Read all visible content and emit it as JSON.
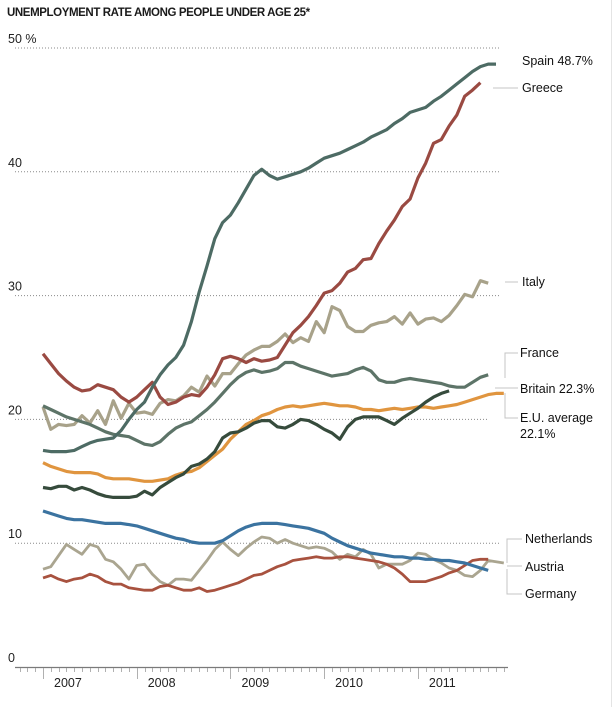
{
  "chart_data": {
    "type": "line",
    "title": "UNEMPLOYMENT RATE AMONG PEOPLE UNDER AGE 25*",
    "xlabel": "",
    "ylabel": "",
    "ylim": [
      0,
      50
    ],
    "y_ticks": [
      {
        "value": 0,
        "label": "0"
      },
      {
        "value": 10,
        "label": "10"
      },
      {
        "value": 20,
        "label": "20"
      },
      {
        "value": 30,
        "label": "30"
      },
      {
        "value": 40,
        "label": "40"
      },
      {
        "value": 50,
        "label": "50 %"
      }
    ],
    "x_ticks": [
      "2007",
      "2008",
      "2009",
      "2010",
      "2011"
    ],
    "x_start": "2007-01",
    "x_unit": "month",
    "grid": "horizontal dotted",
    "legend": "direct labels at right end of lines",
    "series": [
      {
        "name": "Spain",
        "label": "Spain 48.7%",
        "color": "#4d6b64",
        "width": 3.2,
        "values": [
          17.5,
          17.4,
          17.4,
          17.4,
          17.5,
          17.8,
          18.1,
          18.3,
          18.4,
          18.5,
          19.1,
          20.0,
          20.8,
          21.4,
          22.6,
          23.6,
          24.4,
          25.0,
          26.0,
          27.9,
          30.3,
          32.4,
          34.6,
          35.9,
          36.5,
          37.5,
          38.6,
          39.7,
          40.2,
          39.7,
          39.4,
          39.6,
          39.8,
          40.0,
          40.3,
          40.7,
          41.1,
          41.3,
          41.5,
          41.8,
          42.1,
          42.4,
          42.8,
          43.1,
          43.4,
          43.9,
          44.3,
          44.8,
          45.0,
          45.2,
          45.7,
          46.1,
          46.6,
          47.1,
          47.6,
          48.1,
          48.5,
          48.7,
          48.7
        ]
      },
      {
        "name": "Greece",
        "label": "Greece",
        "color": "#9a4a42",
        "width": 3.2,
        "values": [
          25.3,
          24.5,
          23.7,
          23.1,
          22.6,
          22.3,
          22.4,
          22.8,
          22.6,
          22.4,
          21.8,
          21.4,
          21.8,
          22.4,
          23.0,
          21.8,
          21.2,
          21.4,
          21.8,
          22.0,
          21.9,
          22.6,
          23.6,
          24.9,
          25.1,
          24.9,
          24.6,
          24.9,
          24.7,
          24.8,
          25.0,
          26.0,
          27.0,
          27.6,
          28.3,
          29.2,
          30.2,
          30.4,
          31.0,
          31.9,
          32.2,
          32.9,
          33.0,
          34.2,
          35.2,
          36.1,
          37.2,
          37.8,
          39.5,
          40.7,
          42.3,
          42.6,
          43.7,
          44.6,
          46.1,
          46.6,
          47.2
        ]
      },
      {
        "name": "Italy",
        "label": "Italy",
        "color": "#a8a28a",
        "width": 3.2,
        "values": [
          21.0,
          19.2,
          19.6,
          19.5,
          19.6,
          20.3,
          19.7,
          20.7,
          19.6,
          21.5,
          20.1,
          21.3,
          20.5,
          20.6,
          20.4,
          21.3,
          21.6,
          21.5,
          21.9,
          22.6,
          22.2,
          23.5,
          22.7,
          23.7,
          23.7,
          24.5,
          25.2,
          25.6,
          25.9,
          25.9,
          26.3,
          26.9,
          26.2,
          26.6,
          26.3,
          27.9,
          27.0,
          29.1,
          28.8,
          27.5,
          27.1,
          27.1,
          27.6,
          27.8,
          27.9,
          28.3,
          27.7,
          28.6,
          27.7,
          28.1,
          28.2,
          27.9,
          28.4,
          29.2,
          30.1,
          29.9,
          31.2,
          31.0
        ]
      },
      {
        "name": "France",
        "label": "France",
        "color": "#5d7468",
        "width": 3.2,
        "values": [
          21.1,
          20.8,
          20.5,
          20.2,
          20.0,
          19.8,
          19.6,
          19.3,
          19.0,
          18.8,
          18.7,
          18.6,
          18.3,
          18.0,
          17.9,
          18.2,
          18.8,
          19.3,
          19.6,
          19.8,
          20.3,
          20.8,
          21.4,
          22.1,
          22.8,
          23.4,
          23.8,
          24.0,
          23.8,
          23.9,
          24.1,
          24.6,
          24.6,
          24.3,
          24.1,
          23.9,
          23.7,
          23.5,
          23.6,
          23.7,
          24.0,
          24.2,
          23.9,
          23.2,
          23.0,
          23.0,
          23.2,
          23.3,
          23.2,
          23.1,
          23.0,
          22.9,
          22.7,
          22.6,
          22.6,
          23.0,
          23.4,
          23.6
        ]
      },
      {
        "name": "Britain",
        "label": "Britain 22.3%",
        "color": "#364b3c",
        "width": 3.2,
        "values": [
          14.5,
          14.4,
          14.6,
          14.6,
          14.3,
          14.5,
          14.3,
          14.0,
          13.8,
          13.7,
          13.7,
          13.7,
          13.8,
          14.2,
          13.9,
          14.5,
          14.9,
          15.3,
          15.6,
          16.2,
          16.4,
          16.8,
          17.4,
          18.5,
          18.9,
          19.0,
          19.3,
          19.7,
          19.9,
          19.9,
          19.4,
          19.3,
          19.6,
          20.0,
          19.9,
          19.6,
          19.2,
          18.9,
          18.4,
          19.4,
          20.0,
          20.2,
          20.2,
          20.2,
          19.9,
          19.6,
          20.1,
          20.5,
          20.9,
          21.4,
          21.8,
          22.1,
          22.3
        ]
      },
      {
        "name": "E.U. average",
        "label": "E.U. average 22.1%",
        "color": "#e0953f",
        "width": 3.2,
        "values": [
          16.5,
          16.2,
          16.0,
          15.8,
          15.7,
          15.7,
          15.7,
          15.6,
          15.3,
          15.2,
          15.2,
          15.2,
          15.1,
          15.0,
          15.0,
          15.1,
          15.2,
          15.5,
          15.7,
          15.8,
          16.1,
          16.6,
          17.1,
          17.6,
          18.4,
          19.0,
          19.6,
          19.9,
          20.3,
          20.5,
          20.8,
          21.0,
          21.1,
          21.0,
          21.1,
          21.2,
          21.3,
          21.2,
          21.1,
          21.1,
          21.0,
          20.8,
          20.8,
          20.7,
          20.8,
          20.9,
          20.8,
          20.9,
          21.0,
          21.0,
          20.9,
          21.0,
          21.1,
          21.2,
          21.4,
          21.6,
          21.8,
          22.0,
          22.1,
          22.1
        ]
      },
      {
        "name": "Netherlands",
        "label": "Netherlands",
        "color": "#a8523f",
        "width": 2.8,
        "values": [
          7.2,
          7.4,
          7.1,
          6.9,
          7.1,
          7.2,
          7.5,
          7.3,
          6.9,
          6.7,
          6.7,
          6.4,
          6.3,
          6.2,
          6.2,
          6.5,
          6.6,
          6.4,
          6.2,
          6.2,
          6.4,
          6.1,
          6.2,
          6.4,
          6.6,
          6.8,
          7.1,
          7.4,
          7.5,
          7.8,
          8.1,
          8.3,
          8.6,
          8.7,
          8.8,
          8.9,
          8.8,
          8.8,
          8.9,
          8.9,
          8.8,
          8.7,
          8.6,
          8.5,
          8.3,
          8.0,
          7.5,
          6.9,
          6.9,
          6.9,
          7.1,
          7.3,
          7.6,
          7.8,
          8.2,
          8.6,
          8.7,
          8.7
        ]
      },
      {
        "name": "Austria",
        "label": "Austria",
        "color": "#aaa590",
        "width": 2.8,
        "values": [
          7.9,
          8.1,
          9.0,
          9.9,
          9.5,
          9.1,
          9.9,
          9.7,
          8.7,
          8.5,
          7.9,
          7.1,
          8.2,
          8.3,
          7.5,
          6.9,
          6.6,
          7.1,
          7.1,
          7.0,
          7.8,
          8.6,
          9.5,
          10.1,
          9.5,
          9.0,
          9.6,
          10.1,
          10.5,
          10.4,
          10.0,
          10.3,
          10.0,
          9.8,
          9.6,
          9.7,
          9.6,
          9.3,
          8.7,
          9.1,
          8.9,
          9.5,
          9.1,
          8.0,
          8.3,
          8.3,
          8.3,
          8.6,
          9.2,
          9.1,
          8.7,
          8.4,
          8.0,
          7.8,
          7.4,
          7.3,
          7.8,
          8.6,
          8.5,
          8.4
        ]
      },
      {
        "name": "Germany",
        "label": "Germany",
        "color": "#3b73a0",
        "width": 3.2,
        "values": [
          12.6,
          12.4,
          12.2,
          12.0,
          11.9,
          11.9,
          11.8,
          11.7,
          11.6,
          11.6,
          11.6,
          11.5,
          11.4,
          11.2,
          11.0,
          10.8,
          10.6,
          10.4,
          10.3,
          10.1,
          10.0,
          10.0,
          10.0,
          10.2,
          10.6,
          11.0,
          11.3,
          11.5,
          11.6,
          11.6,
          11.6,
          11.5,
          11.4,
          11.3,
          11.2,
          11.0,
          10.8,
          10.4,
          10.1,
          9.8,
          9.6,
          9.4,
          9.2,
          9.1,
          9.0,
          8.9,
          8.9,
          8.8,
          8.8,
          8.7,
          8.7,
          8.6,
          8.6,
          8.5,
          8.4,
          8.2,
          8.0,
          7.8
        ]
      }
    ]
  }
}
